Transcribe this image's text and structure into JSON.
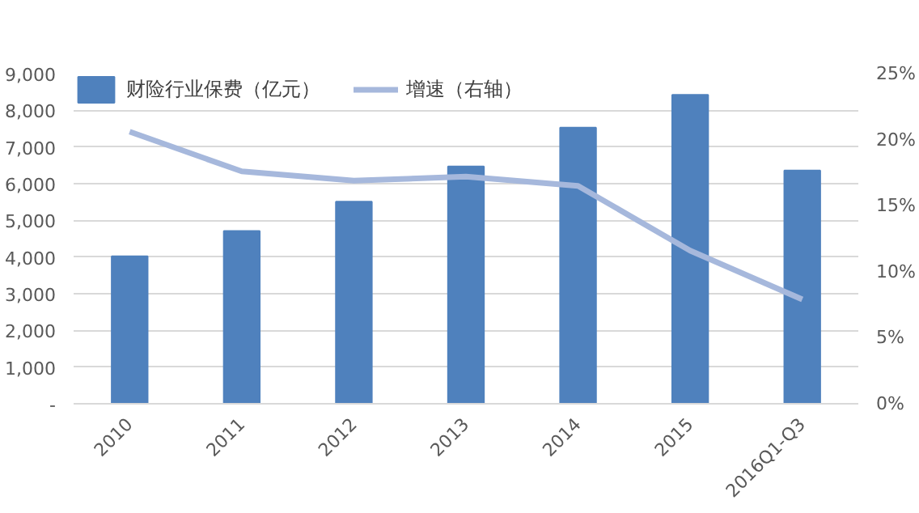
{
  "chart_data": {
    "type": "bar",
    "categories": [
      "2010",
      "2011",
      "2012",
      "2013",
      "2014",
      "2015",
      "2016Q1-Q3"
    ],
    "series": [
      {
        "name": "财险行业保费（亿元）",
        "color": "#4f81bd",
        "values": [
          4020,
          4710,
          5510,
          6470,
          7530,
          8420,
          6360
        ]
      },
      {
        "name": "增速（右轴）",
        "type": "line",
        "axis": "y2",
        "color": "#a6b8dc",
        "values": [
          20.6,
          17.6,
          16.9,
          17.2,
          16.5,
          11.6,
          7.9
        ]
      }
    ],
    "ylim": [
      0,
      9000
    ],
    "yticks": [
      {
        "value": 0,
        "label": "-"
      },
      {
        "value": 1000,
        "label": "1,000"
      },
      {
        "value": 2000,
        "label": "2,000"
      },
      {
        "value": 3000,
        "label": "3,000"
      },
      {
        "value": 4000,
        "label": "4,000"
      },
      {
        "value": 5000,
        "label": "5,000"
      },
      {
        "value": 6000,
        "label": "6,000"
      },
      {
        "value": 7000,
        "label": "7,000"
      },
      {
        "value": 8000,
        "label": "8,000"
      },
      {
        "value": 9000,
        "label": "9,000"
      }
    ],
    "y2lim": [
      0,
      25
    ],
    "y2ticks": [
      {
        "value": 0,
        "label": "0%"
      },
      {
        "value": 5,
        "label": "5%"
      },
      {
        "value": 10,
        "label": "10%"
      },
      {
        "value": 15,
        "label": "15%"
      },
      {
        "value": 20,
        "label": "20%"
      },
      {
        "value": 25,
        "label": "25%"
      }
    ],
    "grid": "y",
    "legend": "top left",
    "marker": "none",
    "line_style": "solid"
  }
}
